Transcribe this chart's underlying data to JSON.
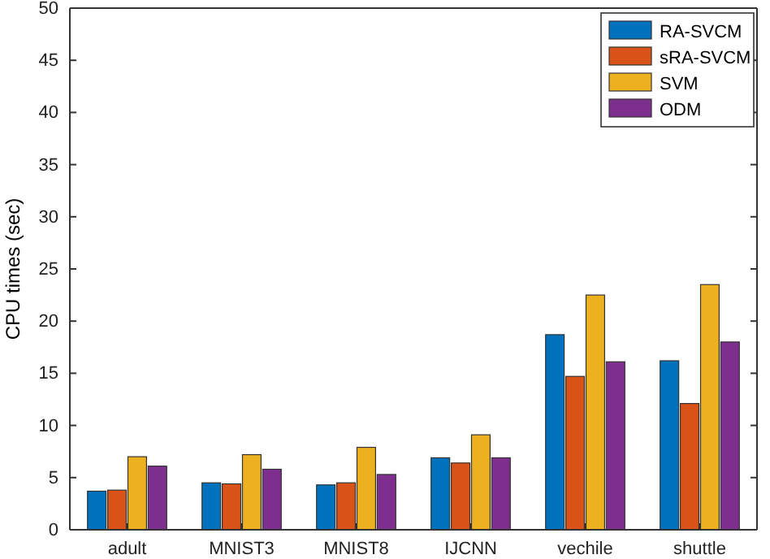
{
  "chart_data": {
    "type": "bar",
    "ylabel": "CPU times (sec)",
    "categories": [
      "adult",
      "MNIST3",
      "MNIST8",
      "IJCNN",
      "vechile",
      "shuttle"
    ],
    "series": [
      {
        "name": "RA-SVCM",
        "color": "#0072bd",
        "values": [
          3.7,
          4.5,
          4.3,
          6.9,
          18.7,
          16.2
        ]
      },
      {
        "name": "sRA-SVCM",
        "color": "#d95319",
        "values": [
          3.8,
          4.4,
          4.5,
          6.4,
          14.7,
          12.1
        ]
      },
      {
        "name": "SVM",
        "color": "#edb120",
        "values": [
          7.0,
          7.2,
          7.9,
          9.1,
          22.5,
          23.5
        ]
      },
      {
        "name": "ODM",
        "color": "#7e2f8e",
        "values": [
          6.1,
          5.8,
          5.3,
          6.9,
          16.1,
          18.0
        ]
      }
    ],
    "ylim": [
      0,
      50
    ],
    "yticks": [
      0,
      5,
      10,
      15,
      20,
      25,
      30,
      35,
      40,
      45,
      50
    ],
    "legend": "top right"
  }
}
